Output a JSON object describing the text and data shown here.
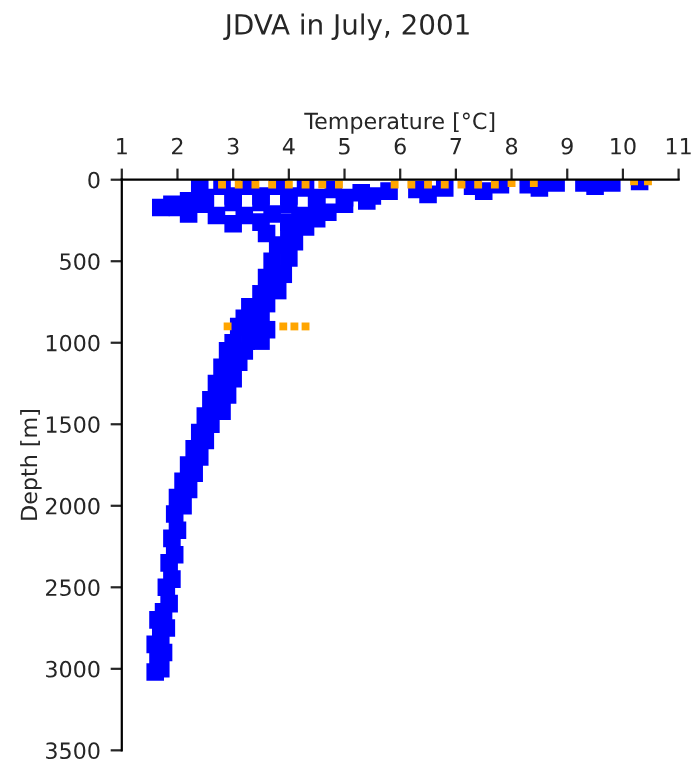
{
  "chart_data": {
    "type": "scatter",
    "title": "JDVA in July, 2001",
    "xlabel": "Temperature [°C]",
    "ylabel": "Depth [m]",
    "xlim": [
      1,
      11
    ],
    "xticks": [
      1,
      2,
      3,
      4,
      5,
      6,
      7,
      8,
      9,
      10,
      11
    ],
    "ylim": [
      3500,
      0
    ],
    "yticks": [
      0,
      500,
      1000,
      1500,
      2000,
      2500,
      3000,
      3500
    ],
    "grid": false,
    "marker": "square",
    "legend": false,
    "series": [
      {
        "color": "#0000ff",
        "x": [
          10.3,
          9.8,
          9.3,
          8.8,
          8.3,
          7.8,
          7.3,
          6.8,
          6.3,
          5.8,
          5.3,
          4.8,
          4.3,
          3.8,
          3.3,
          2.8,
          2.4,
          9.5,
          8.5,
          7.5,
          6.5,
          5.5,
          5.0,
          4.5,
          4.0,
          3.5,
          3.0,
          2.5,
          2.2,
          1.9,
          1.7,
          2.0,
          2.5,
          3.0,
          3.5,
          4.0,
          4.5,
          5.0,
          5.4,
          2.2,
          2.7,
          3.2,
          3.7,
          4.2,
          4.7,
          3.0,
          3.5,
          4.0,
          4.5,
          3.6,
          4.0,
          4.3,
          3.8,
          4.1,
          3.7,
          4.0,
          3.6,
          3.9,
          3.5,
          3.8,
          3.3,
          3.6,
          3.2,
          3.5,
          3.1,
          3.4,
          3.0,
          3.3,
          3.6,
          3.5,
          2.9,
          3.2,
          2.8,
          3.1,
          2.7,
          3.0,
          2.6,
          2.9,
          2.5,
          2.8,
          2.4,
          2.6,
          2.3,
          2.5,
          2.2,
          2.4,
          2.1,
          2.3,
          2.0,
          2.2,
          1.95,
          2.1,
          1.9,
          2.0,
          1.85,
          1.95,
          1.8,
          1.9,
          1.75,
          1.85,
          1.7,
          1.8,
          1.65,
          1.75,
          1.6,
          1.7,
          1.6,
          1.65
        ],
        "values": [
          10,
          20,
          20,
          20,
          30,
          30,
          40,
          50,
          60,
          70,
          80,
          60,
          50,
          40,
          40,
          40,
          50,
          40,
          50,
          70,
          90,
          100,
          110,
          110,
          100,
          100,
          100,
          110,
          130,
          150,
          170,
          170,
          150,
          140,
          140,
          150,
          150,
          150,
          130,
          210,
          220,
          220,
          210,
          220,
          200,
          270,
          260,
          260,
          240,
          330,
          320,
          290,
          400,
          380,
          500,
          480,
          600,
          580,
          700,
          680,
          780,
          760,
          850,
          820,
          900,
          880,
          1000,
          970,
          920,
          990,
          1050,
          1050,
          1150,
          1120,
          1250,
          1220,
          1350,
          1320,
          1450,
          1420,
          1550,
          1500,
          1650,
          1600,
          1750,
          1700,
          1850,
          1800,
          1950,
          1900,
          2050,
          2000,
          2200,
          2150,
          2350,
          2300,
          2500,
          2450,
          2650,
          2600,
          2800,
          2750,
          2950,
          2900,
          3020,
          3000,
          2850,
          2700
        ]
      },
      {
        "color": "#ffa500",
        "x": [
          2.8,
          3.1,
          3.4,
          3.7,
          4.0,
          4.3,
          4.6,
          4.9,
          5.9,
          6.2,
          6.5,
          6.8,
          7.1,
          7.4,
          7.7,
          8.0,
          8.4,
          10.2,
          10.45,
          2.9,
          3.9,
          4.1,
          4.3
        ],
        "values": [
          30,
          30,
          30,
          30,
          30,
          30,
          30,
          30,
          30,
          30,
          30,
          30,
          30,
          30,
          30,
          20,
          20,
          10,
          10,
          900,
          900,
          900,
          900
        ]
      }
    ]
  }
}
